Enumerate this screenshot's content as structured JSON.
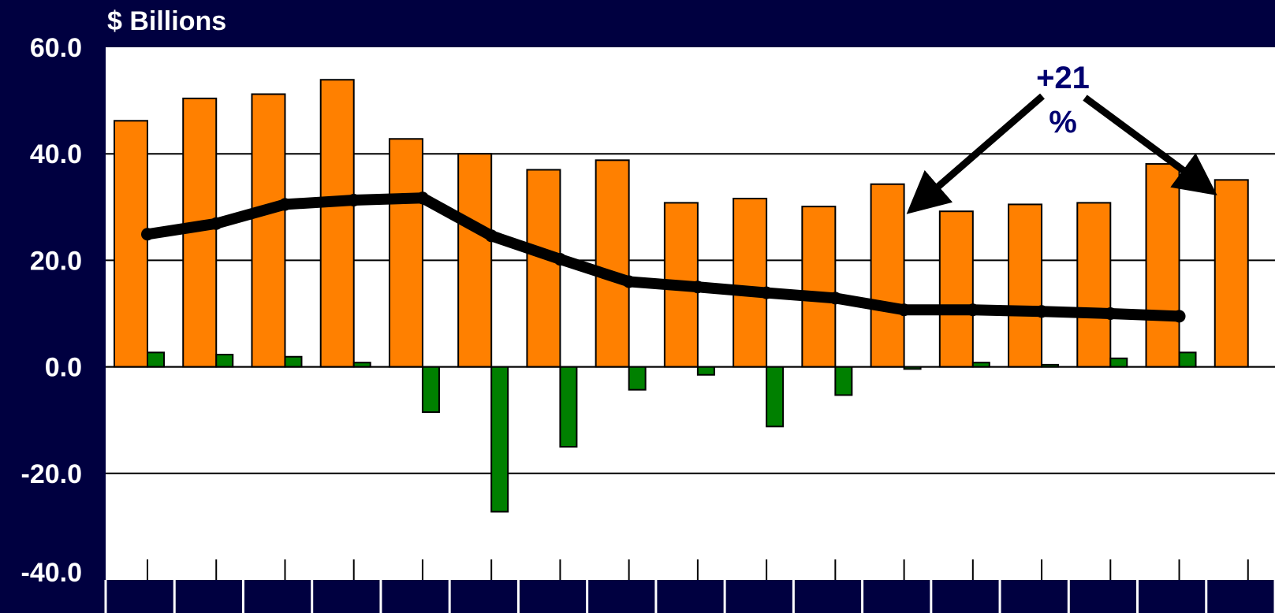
{
  "chart_data": {
    "type": "bar",
    "ylabel": "$ Billions",
    "ylim": [
      -40,
      60
    ],
    "yticks": [
      "60.0",
      "40.0",
      "20.0",
      "0.0",
      "-20.0",
      "-40.0"
    ],
    "ytick_values": [
      60,
      40,
      20,
      0,
      -20,
      -40
    ],
    "grid": true,
    "series": [
      {
        "color": "#FF8000",
        "values": [
          46.2,
          50.4,
          51.2,
          53.9,
          42.8,
          40.0,
          37.0,
          38.8,
          30.8,
          31.6,
          30.1,
          34.3,
          29.2,
          30.5,
          30.8,
          38.1,
          35.1
        ]
      },
      {
        "color": "#008000",
        "values": [
          2.7,
          2.3,
          1.9,
          0.8,
          -8.5,
          -27.2,
          -15.0,
          -4.3,
          -1.5,
          -11.2,
          -5.3,
          -0.4,
          0.8,
          0.4,
          1.6,
          2.7,
          null
        ]
      },
      {
        "color": "#000000",
        "values": [
          24.9,
          26.9,
          30.5,
          31.3,
          31.7,
          24.6,
          20.2,
          16.0,
          15.0,
          13.9,
          12.9,
          10.7,
          10.7,
          10.4,
          10.0,
          9.5,
          null
        ]
      }
    ],
    "annotations": [
      {
        "text_line1": "+21",
        "text_line2": "%"
      }
    ]
  }
}
